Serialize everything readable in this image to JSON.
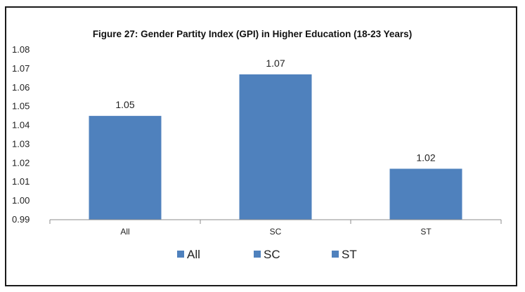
{
  "chart_data": {
    "type": "bar",
    "title": "Figure 27: Gender Partity Index (GPI) in Higher Education (18-23 Years)",
    "categories": [
      "All",
      "SC",
      "ST"
    ],
    "values": [
      1.045,
      1.067,
      1.017
    ],
    "data_labels": [
      "1.05",
      "1.07",
      "1.02"
    ],
    "ylim": [
      0.99,
      1.08
    ],
    "yticks": [
      "0.99",
      "1.00",
      "1.01",
      "1.02",
      "1.03",
      "1.04",
      "1.05",
      "1.06",
      "1.07",
      "1.08"
    ],
    "xlabel": "",
    "ylabel": "",
    "grid": false,
    "legend": {
      "position": "bottom",
      "entries": [
        "All",
        "SC",
        "ST"
      ]
    },
    "colors": {
      "bar": "#4F81BD",
      "axis": "#8c8c8c"
    }
  }
}
